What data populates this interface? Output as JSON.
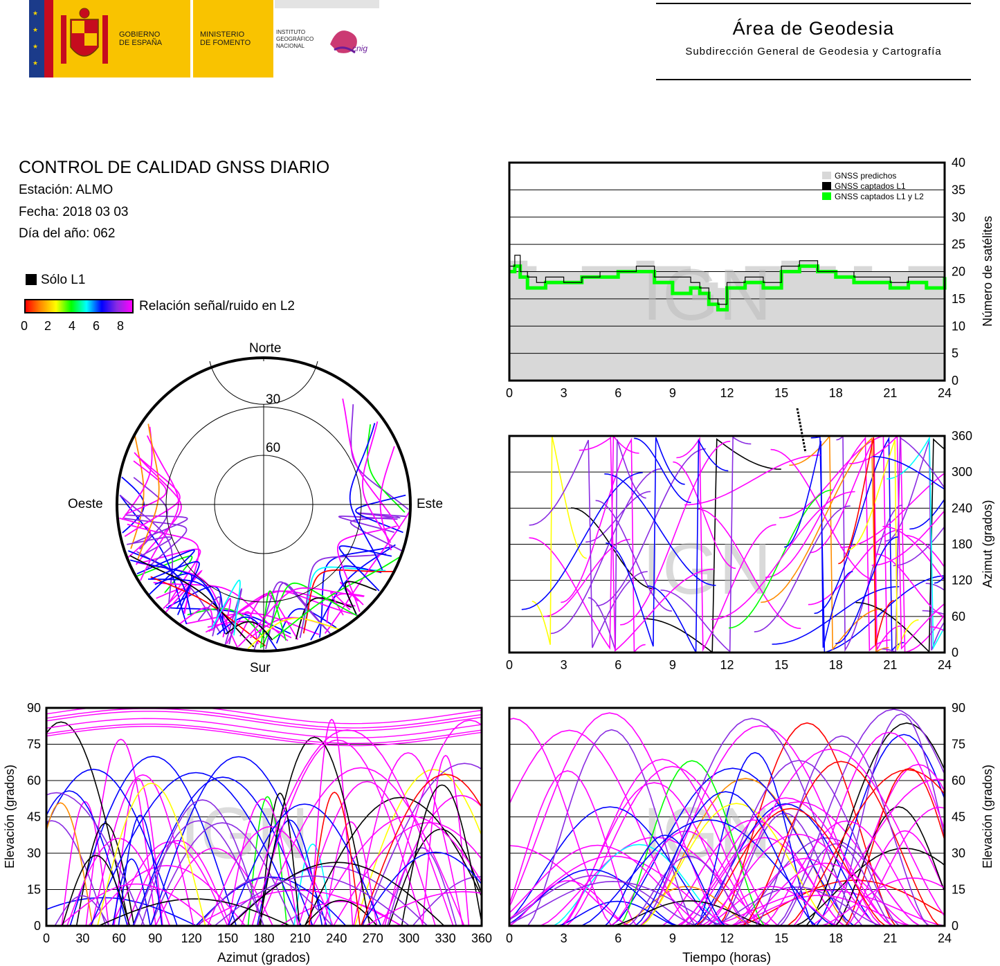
{
  "header": {
    "gov_line1": "GOBIERNO",
    "gov_line2": "DE ESPAÑA",
    "min_line1": "MINISTERIO",
    "min_line2": "DE FOMENTO",
    "inst_line1": "INSTITUTO",
    "inst_line2": "GEOGRÁFICO",
    "inst_line3": "NACIONAL",
    "cnig": "cnig",
    "area_title": "Área de Geodesia",
    "area_subtitle": "Subdirección General de Geodesia y Cartografía"
  },
  "info": {
    "title": "CONTROL DE CALIDAD GNSS DIARIO",
    "station": "Estación: ALMO",
    "date": "Fecha: 2018 03 03",
    "doy": "Día del año: 062"
  },
  "legend": {
    "l1_only": "Sólo L1",
    "snr_label": "Relación señal/ruido en L2",
    "snr_ticks": [
      "0",
      "2",
      "4",
      "6",
      "8"
    ]
  },
  "colors": {
    "snr_gradient": [
      "#ff0000",
      "#ff8c00",
      "#ffff00",
      "#00ff00",
      "#00ffff",
      "#0000ff",
      "#8a2be2",
      "#ff00ff"
    ],
    "predicted": "#d8d8d8",
    "l1": "#000000",
    "l1l2": "#00ff00"
  },
  "watermark": "IGN",
  "chart_data": [
    {
      "id": "skyplot",
      "type": "scatter",
      "projection": "polar",
      "labels": {
        "north": "Norte",
        "south": "Sur",
        "east": "Este",
        "west": "Oeste"
      },
      "elevation_rings": [
        "30",
        "60"
      ],
      "elevation_ring_values": [
        30,
        60
      ],
      "note_hidden": false
    },
    {
      "id": "satellite-count",
      "type": "area",
      "ylabel": "Número de satélites",
      "xlim": [
        0,
        24
      ],
      "ylim": [
        0,
        40
      ],
      "xticks": [
        "0",
        "3",
        "6",
        "9",
        "12",
        "15",
        "18",
        "21",
        "24"
      ],
      "yticks": [
        "0",
        "5",
        "10",
        "15",
        "20",
        "25",
        "30",
        "35",
        "40"
      ],
      "legend": [
        "GNSS predichos",
        "GNSS captados L1",
        "GNSS captados L1 y L2"
      ],
      "legend_position": "top-right",
      "series": [
        {
          "name": "GNSS predichos",
          "x": [
            0,
            0.5,
            1,
            1.5,
            2,
            3,
            4,
            5,
            6,
            7,
            8,
            9,
            10,
            11,
            11.5,
            12,
            13,
            14,
            15,
            16,
            17,
            18,
            19,
            20,
            21,
            22,
            23,
            24
          ],
          "values": [
            22,
            22,
            21,
            20,
            20,
            20,
            21,
            21,
            21,
            22,
            21,
            21,
            20,
            18,
            17,
            20,
            21,
            21,
            22,
            22,
            21,
            20,
            21,
            20,
            20,
            21,
            21,
            21
          ]
        },
        {
          "name": "GNSS captados L1",
          "x": [
            0,
            0.3,
            0.6,
            1,
            1.5,
            2,
            3,
            4,
            5,
            6,
            7,
            8,
            9,
            10,
            10.5,
            11,
            11.5,
            12,
            13,
            14,
            15,
            16,
            17,
            18,
            19,
            20,
            21,
            22,
            23,
            24
          ],
          "values": [
            21,
            23,
            20,
            19,
            18,
            19,
            18,
            19,
            20,
            20,
            21,
            19,
            19,
            18,
            17,
            15,
            14,
            18,
            19,
            18,
            21,
            22,
            20,
            20,
            19,
            19,
            18,
            19,
            19,
            20
          ]
        },
        {
          "name": "GNSS captados L1 y L2",
          "x": [
            0,
            0.3,
            0.6,
            1,
            1.5,
            2,
            3,
            4,
            5,
            6,
            7,
            8,
            9,
            10,
            10.5,
            11,
            11.5,
            12,
            13,
            14,
            15,
            16,
            17,
            18,
            19,
            20,
            21,
            22,
            23,
            24
          ],
          "values": [
            20,
            21,
            19,
            17,
            17,
            18,
            18,
            19,
            19,
            20,
            20,
            18,
            16,
            17,
            16,
            14,
            13,
            17,
            18,
            17,
            20,
            21,
            20,
            19,
            18,
            18,
            17,
            18,
            17,
            19
          ]
        }
      ]
    },
    {
      "id": "azimuth-time",
      "type": "scatter",
      "ylabel": "Azimut (grados)",
      "xlim": [
        0,
        24
      ],
      "ylim": [
        0,
        360
      ],
      "xticks": [
        "0",
        "3",
        "6",
        "9",
        "12",
        "15",
        "18",
        "21",
        "24"
      ],
      "yticks": [
        "0",
        "60",
        "120",
        "180",
        "240",
        "300",
        "360"
      ]
    },
    {
      "id": "elevation-azimuth",
      "type": "scatter",
      "xlabel": "Azimut (grados)",
      "ylabel": "Elevación (grados)",
      "xlim": [
        0,
        360
      ],
      "ylim": [
        0,
        90
      ],
      "xticks": [
        "0",
        "30",
        "60",
        "90",
        "120",
        "150",
        "180",
        "210",
        "240",
        "270",
        "300",
        "330",
        "360"
      ],
      "yticks": [
        "0",
        "15",
        "30",
        "45",
        "60",
        "75",
        "90"
      ]
    },
    {
      "id": "elevation-time",
      "type": "scatter",
      "xlabel": "Tiempo (horas)",
      "ylabel": "Elevación (grados)",
      "xlim": [
        0,
        24
      ],
      "ylim": [
        0,
        90
      ],
      "xticks": [
        "0",
        "3",
        "6",
        "9",
        "12",
        "15",
        "18",
        "21",
        "24"
      ],
      "yticks": [
        "0",
        "15",
        "30",
        "45",
        "60",
        "75",
        "90"
      ]
    }
  ]
}
